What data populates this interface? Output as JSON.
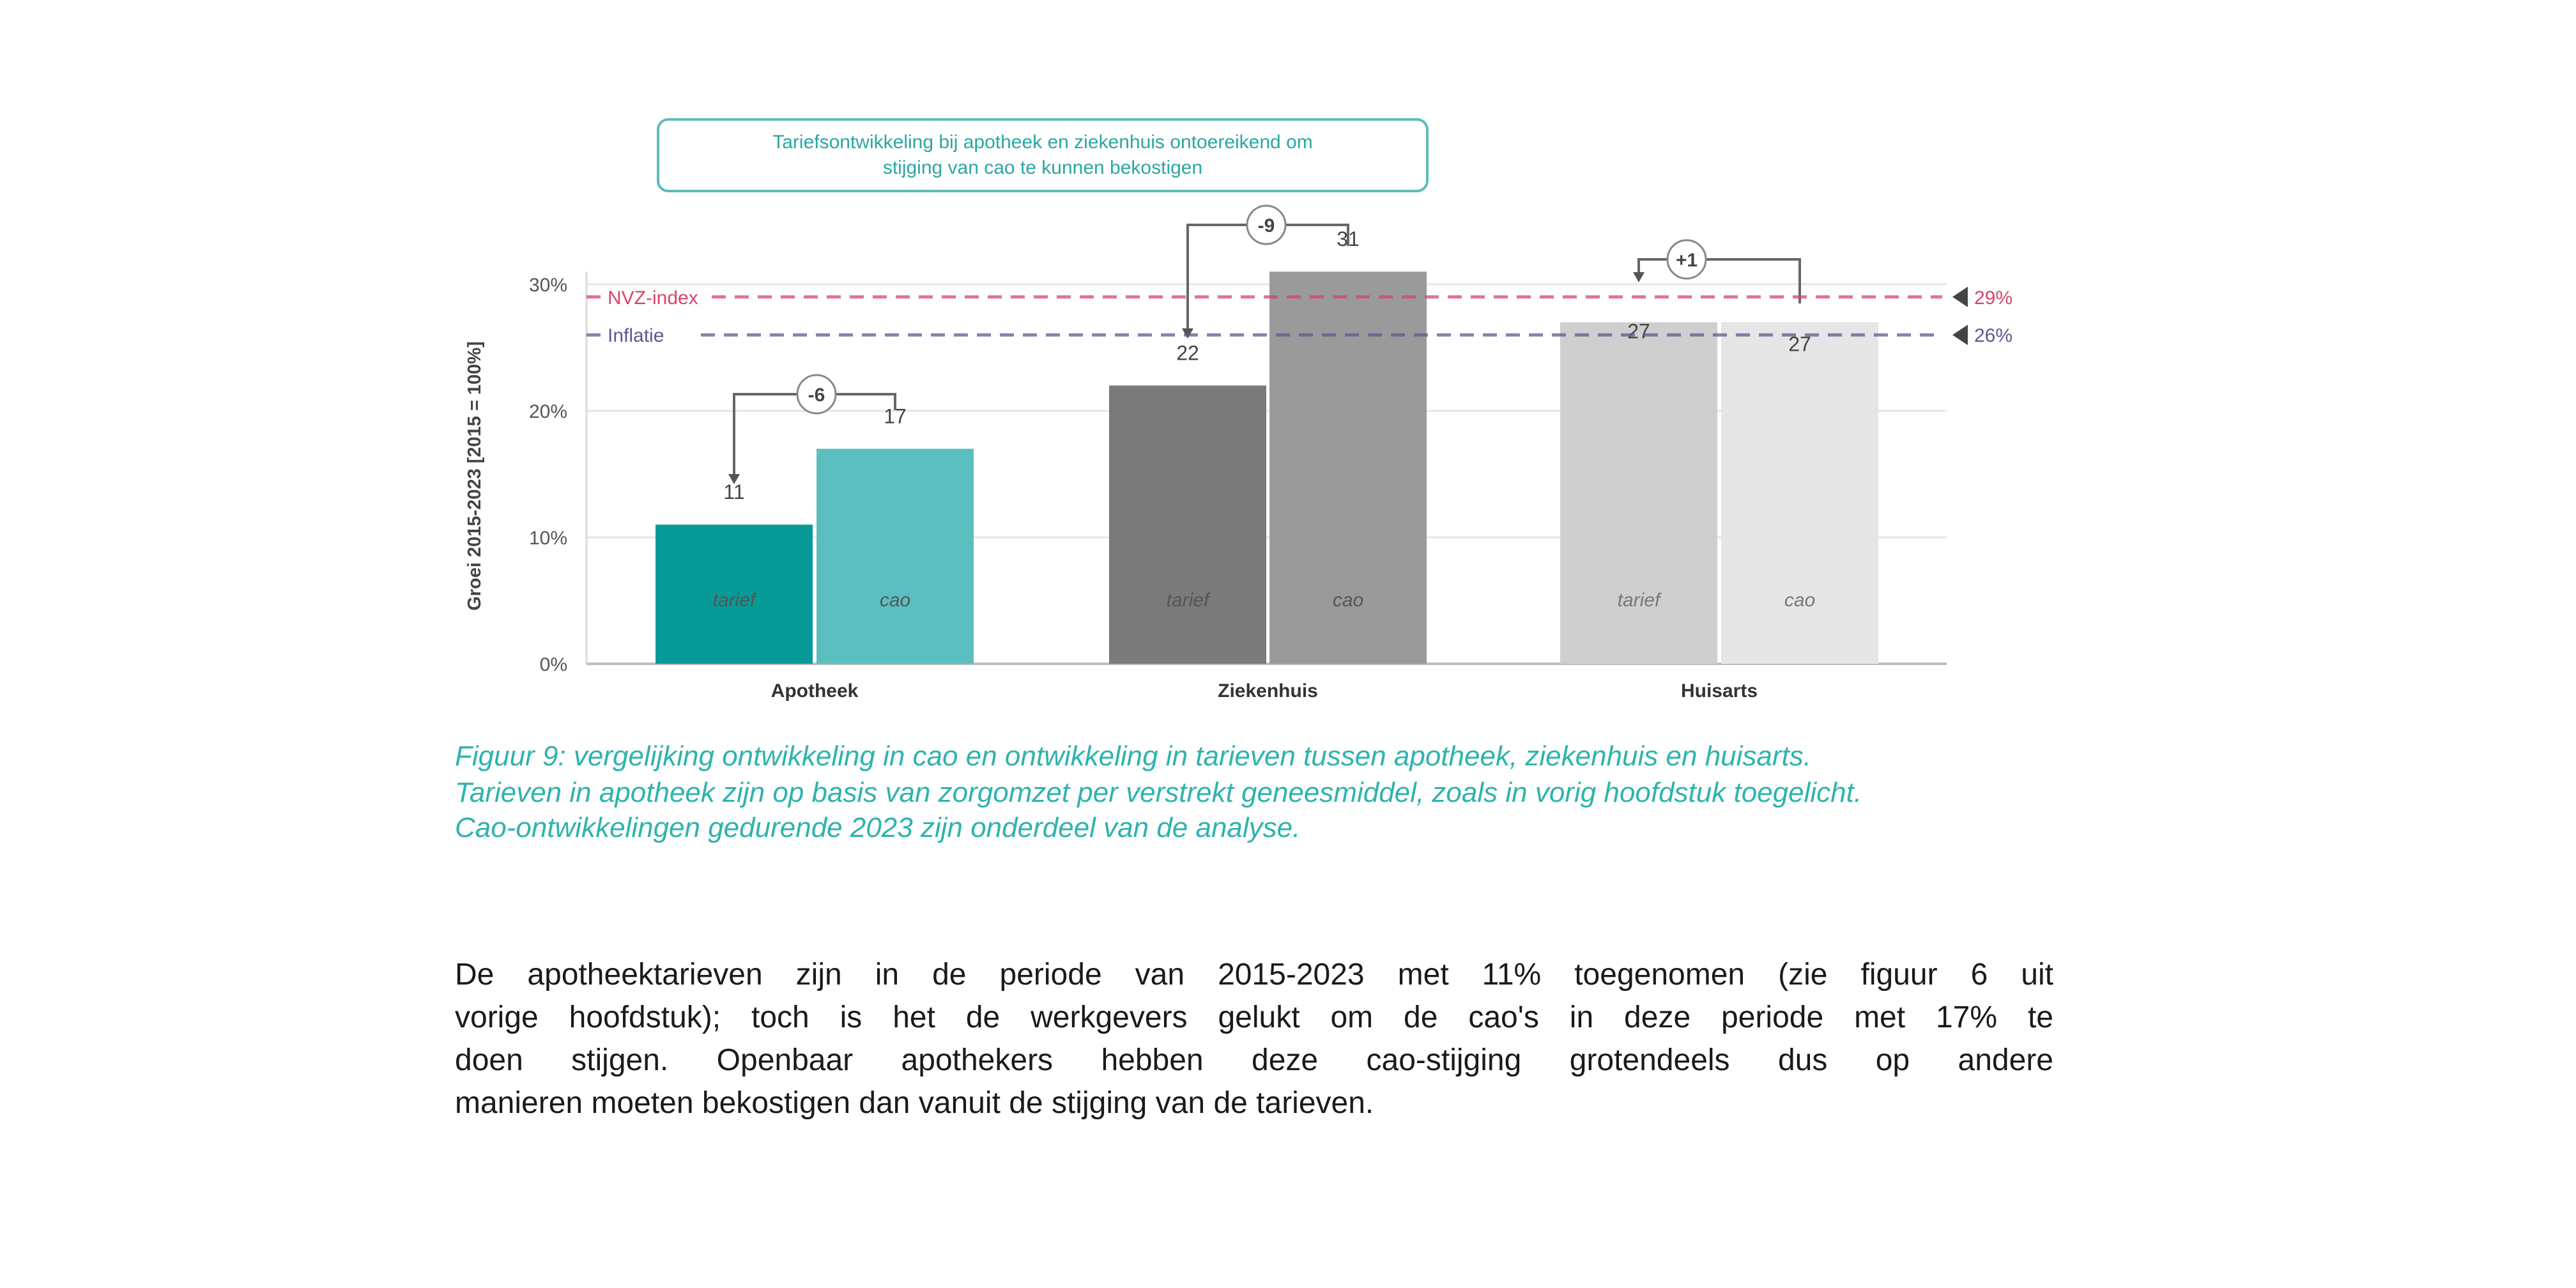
{
  "chart_data": {
    "type": "bar",
    "ylabel": "Groei 2015-2023 [2015 = 100%]",
    "ylim": [
      0,
      30
    ],
    "yticks": [
      "0%",
      "10%",
      "20%",
      "30%"
    ],
    "ytick_values": [
      0,
      10,
      20,
      30
    ],
    "grid": true,
    "categories": [
      "Apotheek",
      "Ziekenhuis",
      "Huisarts"
    ],
    "series": [
      {
        "name": "tarief",
        "values": [
          11,
          22,
          27
        ],
        "colors": [
          "#089a96",
          "#7a7a7a",
          "#cfcfcf"
        ]
      },
      {
        "name": "cao",
        "values": [
          17,
          31,
          27
        ],
        "colors": [
          "#5bbfbf",
          "#9a9a9a",
          "#e6e6e6"
        ]
      }
    ],
    "differences": [
      "-6",
      "-9",
      "+1"
    ],
    "reference_lines": [
      {
        "name": "NVZ-index",
        "value": 29,
        "label": "29%",
        "color": "#d6456a"
      },
      {
        "name": "Inflatie",
        "value": 26,
        "label": "26%",
        "color": "#5a5a90"
      }
    ],
    "annotation": [
      "Tariefsontwikkeling bij apotheek en ziekenhuis ontoereikend om",
      "stijging van cao te kunnen bekostigen"
    ]
  },
  "caption": [
    "Figuur 9: vergelijking ontwikkeling in cao en ontwikkeling in tarieven tussen apotheek, ziekenhuis en huisarts.",
    "Tarieven in apotheek zijn op basis van zorgomzet per verstrekt geneesmiddel, zoals in vorig hoofdstuk toegelicht.",
    "Cao-ontwikkelingen gedurende 2023 zijn onderdeel van de analyse."
  ],
  "paragraph": [
    "De apotheektarieven zijn in de periode van 2015-2023 met 11% toegenomen (zie figuur 6 uit",
    "vorige hoofdstuk); toch is het de werkgevers gelukt om de cao's in deze periode met 17% te",
    "doen stijgen. Openbaar apothekers hebben deze cao-stijging grotendeels dus op andere",
    "manieren moeten bekostigen dan vanuit de stijging van de tarieven."
  ]
}
